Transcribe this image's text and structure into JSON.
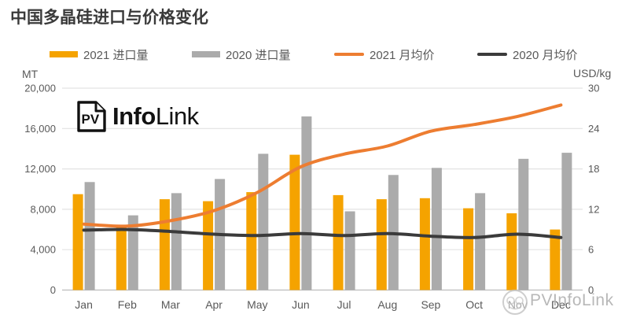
{
  "page": {
    "title": "中国多晶硅进口与价格变化"
  },
  "branding": {
    "logo_icon_text": "PV",
    "logo_bold": "Info",
    "logo_regular": "Link",
    "watermark_text": "PVInfoLink"
  },
  "chart_data": {
    "type": "combo",
    "title": "中国多晶硅进口与价格变化",
    "legend_position": "top",
    "grid": true,
    "categories": [
      "Jan",
      "Feb",
      "Mar",
      "Apr",
      "May",
      "Jun",
      "Jul",
      "Aug",
      "Sep",
      "Oct",
      "Nov",
      "Dec"
    ],
    "series": [
      {
        "name": "2021 进口量",
        "type": "bar",
        "axis": "left",
        "color": "#F5A300",
        "values": [
          9500,
          6200,
          9000,
          8800,
          9700,
          13400,
          9400,
          9000,
          9100,
          8100,
          7600,
          6000
        ]
      },
      {
        "name": "2020 进口量",
        "type": "bar",
        "axis": "left",
        "color": "#ABABAB",
        "values": [
          10700,
          7400,
          9600,
          11000,
          13500,
          17200,
          7800,
          11400,
          12100,
          9600,
          13000,
          13600
        ]
      },
      {
        "name": "2021 月均价",
        "type": "line",
        "axis": "right",
        "color": "#ED7D31",
        "values": [
          9.8,
          9.5,
          10.3,
          11.8,
          14.5,
          18.3,
          20.2,
          21.4,
          23.6,
          24.6,
          25.8,
          27.5
        ]
      },
      {
        "name": "2020 月均价",
        "type": "line",
        "axis": "right",
        "color": "#3B3B3B",
        "values": [
          8.9,
          9.0,
          8.7,
          8.3,
          8.1,
          8.4,
          8.1,
          8.4,
          8.0,
          7.8,
          8.3,
          7.8
        ]
      }
    ],
    "left_axis": {
      "label": "MT",
      "min": 0,
      "max": 20000,
      "tick_labels": [
        "0",
        "4,000",
        "8,000",
        "12,000",
        "16,000",
        "20,000"
      ]
    },
    "right_axis": {
      "label": "USD/kg",
      "min": 0,
      "max": 30,
      "tick_labels": [
        "0",
        "6",
        "12",
        "18",
        "24",
        "30"
      ]
    },
    "colors": {
      "grid_line": "#E3E3E3",
      "zero_line": "#BDBDBD",
      "axis_text": "#595959",
      "title_text": "#3A3A3A"
    }
  }
}
